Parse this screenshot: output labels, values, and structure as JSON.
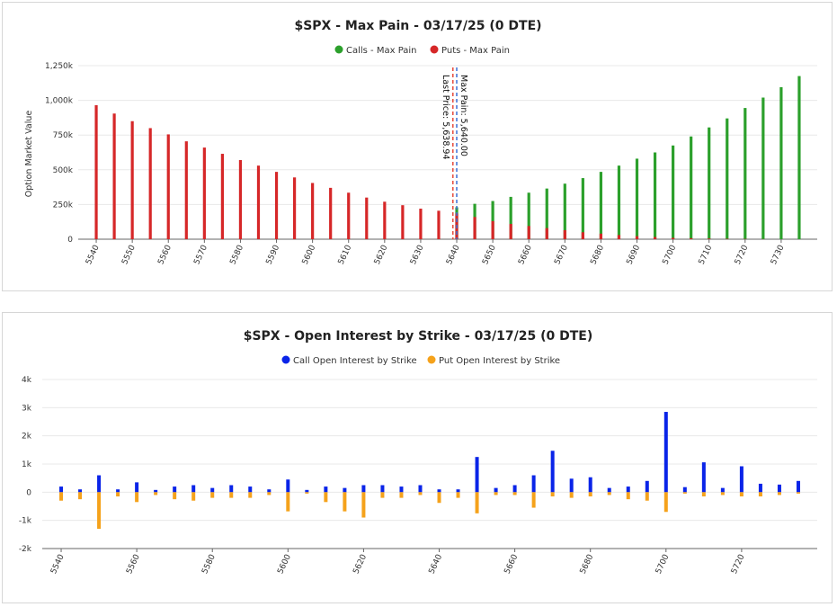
{
  "colors": {
    "calls": "#2ca02c",
    "puts": "#d62728",
    "call_oi": "#0a24e8",
    "put_oi": "#f5a21b",
    "last_price_line": "#e74c3c",
    "max_pain_line": "#3a6fd8"
  },
  "chart_data": [
    {
      "type": "bar",
      "title": "$SPX - Max Pain - 03/17/25 (0 DTE)",
      "ylabel": "Option Market Value",
      "ylim": [
        0,
        1250000
      ],
      "yticks": [
        0,
        250000,
        500000,
        750000,
        1000000,
        1250000
      ],
      "ytick_labels": [
        "0",
        "250k",
        "500k",
        "750k",
        "1,000k",
        "1,250k"
      ],
      "xticks": [
        5540,
        5550,
        5560,
        5570,
        5580,
        5590,
        5600,
        5610,
        5620,
        5630,
        5640,
        5650,
        5660,
        5670,
        5680,
        5690,
        5700,
        5710,
        5720,
        5730
      ],
      "grid": true,
      "legend_position": "top-center",
      "x": [
        5540,
        5545,
        5550,
        5555,
        5560,
        5565,
        5570,
        5575,
        5580,
        5585,
        5590,
        5595,
        5600,
        5605,
        5610,
        5615,
        5620,
        5625,
        5630,
        5635,
        5640,
        5645,
        5650,
        5655,
        5660,
        5665,
        5670,
        5675,
        5680,
        5685,
        5690,
        5695,
        5700,
        5705,
        5710,
        5715,
        5720,
        5725,
        5730,
        5735
      ],
      "series": [
        {
          "name": "Calls - Max Pain",
          "values": [
            0,
            0,
            0,
            0,
            0,
            0,
            0,
            0,
            0,
            0,
            0,
            0,
            0,
            0,
            0,
            0,
            0,
            0,
            0,
            5000,
            230000,
            255000,
            275000,
            305000,
            335000,
            365000,
            400000,
            440000,
            485000,
            530000,
            580000,
            625000,
            675000,
            740000,
            805000,
            870000,
            945000,
            1020000,
            1095000,
            1175000
          ]
        },
        {
          "name": "Puts - Max Pain",
          "values": [
            965000,
            905000,
            850000,
            800000,
            755000,
            705000,
            660000,
            615000,
            570000,
            530000,
            485000,
            445000,
            405000,
            370000,
            335000,
            300000,
            270000,
            245000,
            220000,
            205000,
            185000,
            160000,
            130000,
            110000,
            95000,
            80000,
            65000,
            50000,
            40000,
            30000,
            22000,
            16000,
            10000,
            7000,
            5000,
            3000,
            2000,
            1000,
            0,
            0
          ]
        }
      ],
      "annotations": [
        {
          "text": "Last Price: 5,638.94",
          "x": 5638.94
        },
        {
          "text": "Max Pain: 5,640.00",
          "x": 5640.0
        }
      ]
    },
    {
      "type": "bar",
      "title": "$SPX - Open Interest by Strike - 03/17/25 (0 DTE)",
      "ylim": [
        -2000,
        4000
      ],
      "yticks": [
        -2000,
        -1000,
        0,
        1000,
        2000,
        3000,
        4000
      ],
      "ytick_labels": [
        "-2k",
        "-1k",
        "0",
        "1k",
        "2k",
        "3k",
        "4k"
      ],
      "xticks": [
        5540,
        5560,
        5580,
        5600,
        5620,
        5640,
        5660,
        5680,
        5700,
        5720
      ],
      "grid": true,
      "legend_position": "top-center",
      "x": [
        5540,
        5545,
        5550,
        5555,
        5560,
        5565,
        5570,
        5575,
        5580,
        5585,
        5590,
        5595,
        5600,
        5605,
        5610,
        5615,
        5620,
        5625,
        5630,
        5635,
        5640,
        5645,
        5650,
        5655,
        5660,
        5665,
        5670,
        5675,
        5680,
        5685,
        5690,
        5695,
        5700,
        5705,
        5710,
        5715,
        5720,
        5725,
        5730,
        5735
      ],
      "series": [
        {
          "name": "Call Open Interest by Strike",
          "values": [
            200,
            100,
            600,
            100,
            350,
            80,
            200,
            250,
            150,
            250,
            200,
            100,
            450,
            80,
            200,
            150,
            250,
            250,
            200,
            250,
            100,
            100,
            1250,
            150,
            250,
            600,
            1470,
            480,
            530,
            150,
            200,
            400,
            2850,
            180,
            1060,
            150,
            920,
            300,
            270,
            400
          ]
        },
        {
          "name": "Put Open Interest by Strike",
          "values": [
            -300,
            -250,
            -1300,
            -150,
            -350,
            -100,
            -250,
            -300,
            -200,
            -200,
            -200,
            -100,
            -680,
            -50,
            -350,
            -680,
            -900,
            -200,
            -200,
            -100,
            -380,
            -200,
            -750,
            -100,
            -100,
            -550,
            -150,
            -200,
            -150,
            -100,
            -250,
            -300,
            -700,
            -50,
            -150,
            -100,
            -150,
            -150,
            -100,
            -50
          ]
        }
      ]
    }
  ]
}
